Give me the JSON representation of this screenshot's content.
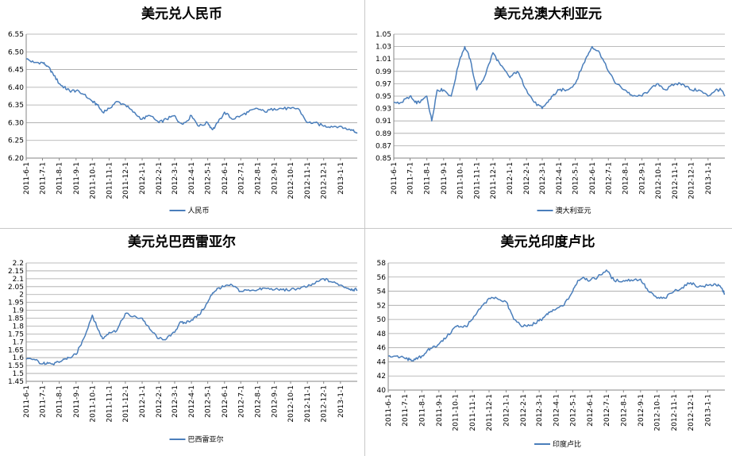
{
  "chart_data": [
    {
      "type": "line",
      "title": "美元兑人民币",
      "x_tick_labels": [
        "2011-6-1",
        "2011-7-1",
        "2011-8-1",
        "2011-9-1",
        "2011-10-1",
        "2011-11-1",
        "2011-12-1",
        "2012-1-1",
        "2012-2-1",
        "2012-3-1",
        "2012-4-1",
        "2012-5-1",
        "2012-6-1",
        "2012-7-1",
        "2012-8-1",
        "2012-9-1",
        "2012-10-1",
        "2012-11-1",
        "2012-12-1",
        "2013-1-1"
      ],
      "ylim": [
        6.2,
        6.55
      ],
      "y_ticks": [
        6.2,
        6.25,
        6.3,
        6.35,
        6.4,
        6.45,
        6.5,
        6.55
      ],
      "y_decimals": 2,
      "grid": true,
      "legend_position": "bottom",
      "series": [
        {
          "name": "人民币",
          "color": "#4a7ebb",
          "x": [
            "2011-6-1",
            "2011-6-15",
            "2011-7-1",
            "2011-7-10",
            "2011-7-20",
            "2011-8-1",
            "2011-8-10",
            "2011-8-20",
            "2011-9-1",
            "2011-9-15",
            "2011-10-1",
            "2011-10-10",
            "2011-10-20",
            "2011-11-1",
            "2011-11-15",
            "2011-12-1",
            "2011-12-15",
            "2012-1-1",
            "2012-1-15",
            "2012-2-1",
            "2012-2-15",
            "2012-3-1",
            "2012-3-10",
            "2012-3-20",
            "2012-4-1",
            "2012-4-15",
            "2012-5-1",
            "2012-5-10",
            "2012-5-20",
            "2012-6-1",
            "2012-6-15",
            "2012-7-1",
            "2012-7-15",
            "2012-8-1",
            "2012-8-15",
            "2012-9-1",
            "2012-9-15",
            "2012-10-1",
            "2012-10-15",
            "2012-11-1",
            "2012-11-15",
            "2012-12-1",
            "2012-12-15",
            "2013-1-1",
            "2013-1-15",
            "2013-1-25",
            "2013-2-1"
          ],
          "y": [
            6.48,
            6.47,
            6.47,
            6.46,
            6.44,
            6.41,
            6.4,
            6.39,
            6.39,
            6.38,
            6.36,
            6.35,
            6.33,
            6.34,
            6.36,
            6.35,
            6.33,
            6.31,
            6.32,
            6.3,
            6.31,
            6.32,
            6.3,
            6.3,
            6.32,
            6.29,
            6.3,
            6.28,
            6.3,
            6.33,
            6.31,
            6.32,
            6.33,
            6.34,
            6.33,
            6.34,
            6.34,
            6.34,
            6.34,
            6.3,
            6.3,
            6.29,
            6.29,
            6.29,
            6.28,
            6.28,
            6.27
          ]
        }
      ]
    },
    {
      "type": "line",
      "title": "美元兑澳大利亚元",
      "x_tick_labels": [
        "2011-6-1",
        "2011-7-1",
        "2011-8-1",
        "2011-9-1",
        "2011-10-1",
        "2011-11-1",
        "2011-12-1",
        "2012-1-1",
        "2012-2-1",
        "2012-3-1",
        "2012-4-1",
        "2012-5-1",
        "2012-6-1",
        "2012-7-1",
        "2012-8-1",
        "2012-9-1",
        "2012-10-1",
        "2012-11-1",
        "2012-12-1",
        "2013-1-1"
      ],
      "ylim": [
        0.85,
        1.05
      ],
      "y_ticks": [
        0.85,
        0.87,
        0.89,
        0.91,
        0.93,
        0.95,
        0.97,
        0.99,
        1.01,
        1.03,
        1.05
      ],
      "y_decimals": 2,
      "grid": true,
      "legend_position": "bottom",
      "series": [
        {
          "name": "澳大利亚元",
          "color": "#4a7ebb",
          "x": [
            "2011-6-1",
            "2011-6-15",
            "2011-7-1",
            "2011-7-10",
            "2011-7-20",
            "2011-8-1",
            "2011-8-10",
            "2011-8-20",
            "2011-9-1",
            "2011-9-15",
            "2011-10-1",
            "2011-10-10",
            "2011-10-20",
            "2011-11-1",
            "2011-11-15",
            "2011-12-1",
            "2011-12-15",
            "2012-1-1",
            "2012-1-15",
            "2012-2-1",
            "2012-2-15",
            "2012-3-1",
            "2012-3-10",
            "2012-3-20",
            "2012-4-1",
            "2012-4-15",
            "2012-5-1",
            "2012-5-10",
            "2012-5-20",
            "2012-6-1",
            "2012-6-15",
            "2012-7-1",
            "2012-7-15",
            "2012-8-1",
            "2012-8-15",
            "2012-9-1",
            "2012-9-15",
            "2012-10-1",
            "2012-10-15",
            "2012-11-1",
            "2012-11-15",
            "2012-12-1",
            "2012-12-15",
            "2013-1-1",
            "2013-1-15",
            "2013-1-25",
            "2013-2-1"
          ],
          "y": [
            0.94,
            0.94,
            0.95,
            0.94,
            0.94,
            0.95,
            0.91,
            0.96,
            0.96,
            0.95,
            1.01,
            1.03,
            1.01,
            0.96,
            0.98,
            1.02,
            1.0,
            0.98,
            0.99,
            0.96,
            0.94,
            0.93,
            0.94,
            0.95,
            0.96,
            0.96,
            0.97,
            0.99,
            1.01,
            1.03,
            1.02,
            0.99,
            0.97,
            0.96,
            0.95,
            0.95,
            0.96,
            0.97,
            0.96,
            0.97,
            0.97,
            0.96,
            0.96,
            0.95,
            0.96,
            0.96,
            0.95
          ]
        }
      ]
    },
    {
      "type": "line",
      "title": "美元兑巴西雷亚尔",
      "x_tick_labels": [
        "2011-6-1",
        "2011-7-1",
        "2011-8-1",
        "2011-9-1",
        "2011-10-1",
        "2011-11-1",
        "2011-12-1",
        "2012-1-1",
        "2012-2-1",
        "2012-3-1",
        "2012-4-1",
        "2012-5-1",
        "2012-6-1",
        "2012-7-1",
        "2012-8-1",
        "2012-9-1",
        "2012-10-1",
        "2012-11-1",
        "2012-12-1",
        "2013-1-1"
      ],
      "ylim": [
        1.45,
        2.2
      ],
      "y_ticks": [
        1.45,
        1.5,
        1.55,
        1.6,
        1.65,
        1.7,
        1.75,
        1.8,
        1.85,
        1.9,
        1.95,
        2.0,
        2.05,
        2.1,
        2.15,
        2.2
      ],
      "y_decimals": -1,
      "grid": true,
      "legend_position": "bottom",
      "series": [
        {
          "name": "巴西雷亚尔",
          "color": "#4a7ebb",
          "x": [
            "2011-6-1",
            "2011-6-15",
            "2011-7-1",
            "2011-7-10",
            "2011-7-20",
            "2011-8-1",
            "2011-8-10",
            "2011-8-20",
            "2011-9-1",
            "2011-9-15",
            "2011-10-1",
            "2011-10-10",
            "2011-10-20",
            "2011-11-1",
            "2011-11-15",
            "2011-12-1",
            "2011-12-15",
            "2012-1-1",
            "2012-1-15",
            "2012-2-1",
            "2012-2-15",
            "2012-3-1",
            "2012-3-10",
            "2012-3-20",
            "2012-4-1",
            "2012-4-15",
            "2012-5-1",
            "2012-5-10",
            "2012-5-20",
            "2012-6-1",
            "2012-6-15",
            "2012-7-1",
            "2012-7-15",
            "2012-8-1",
            "2012-8-15",
            "2012-9-1",
            "2012-9-15",
            "2012-10-1",
            "2012-10-15",
            "2012-11-1",
            "2012-11-15",
            "2012-12-1",
            "2012-12-15",
            "2013-1-1",
            "2013-1-15",
            "2013-1-25",
            "2013-2-1"
          ],
          "y": [
            1.59,
            1.59,
            1.56,
            1.57,
            1.56,
            1.57,
            1.59,
            1.6,
            1.62,
            1.72,
            1.87,
            1.79,
            1.72,
            1.76,
            1.77,
            1.88,
            1.86,
            1.85,
            1.78,
            1.72,
            1.72,
            1.76,
            1.82,
            1.82,
            1.84,
            1.87,
            1.95,
            2.01,
            2.04,
            2.05,
            2.06,
            2.02,
            2.03,
            2.03,
            2.04,
            2.03,
            2.03,
            2.03,
            2.04,
            2.05,
            2.07,
            2.1,
            2.08,
            2.06,
            2.04,
            2.03,
            2.03
          ]
        }
      ]
    },
    {
      "type": "line",
      "title": "美元兑印度卢比",
      "x_tick_labels": [
        "2011-6-1",
        "2011-7-1",
        "2011-8-1",
        "2011-9-1",
        "2011-10-1",
        "2011-11-1",
        "2011-12-1",
        "2012-1-1",
        "2012-2-1",
        "2012-3-1",
        "2012-4-1",
        "2012-5-1",
        "2012-6-1",
        "2012-7-1",
        "2012-8-1",
        "2012-9-1",
        "2012-10-1",
        "2012-11-1",
        "2012-12-1",
        "2013-1-1"
      ],
      "ylim": [
        40,
        58
      ],
      "y_ticks": [
        40,
        42,
        44,
        46,
        48,
        50,
        52,
        54,
        56,
        58
      ],
      "y_decimals": 0,
      "grid": true,
      "legend_position": "bottom",
      "series": [
        {
          "name": "印度卢比",
          "color": "#4a7ebb",
          "x": [
            "2011-6-1",
            "2011-6-15",
            "2011-7-1",
            "2011-7-10",
            "2011-7-20",
            "2011-8-1",
            "2011-8-10",
            "2011-8-20",
            "2011-9-1",
            "2011-9-15",
            "2011-10-1",
            "2011-10-10",
            "2011-10-20",
            "2011-11-1",
            "2011-11-15",
            "2011-12-1",
            "2011-12-15",
            "2012-1-1",
            "2012-1-15",
            "2012-2-1",
            "2012-2-15",
            "2012-3-1",
            "2012-3-10",
            "2012-3-20",
            "2012-4-1",
            "2012-4-15",
            "2012-5-1",
            "2012-5-10",
            "2012-5-20",
            "2012-6-1",
            "2012-6-15",
            "2012-7-1",
            "2012-7-15",
            "2012-8-1",
            "2012-8-15",
            "2012-9-1",
            "2012-9-15",
            "2012-10-1",
            "2012-10-15",
            "2012-11-1",
            "2012-11-15",
            "2012-12-1",
            "2012-12-15",
            "2013-1-1",
            "2013-1-15",
            "2013-1-25",
            "2013-2-1"
          ],
          "y": [
            44.8,
            44.8,
            44.5,
            44.3,
            44.3,
            44.8,
            45.5,
            46.0,
            46.5,
            47.5,
            49.0,
            49.0,
            49.0,
            50.0,
            51.5,
            53.0,
            53.0,
            52.5,
            50.0,
            49.0,
            49.2,
            49.8,
            50.3,
            51.0,
            51.5,
            52.0,
            54.0,
            55.5,
            56.0,
            55.5,
            56.0,
            57.0,
            55.5,
            55.5,
            55.6,
            55.7,
            54.0,
            53.0,
            53.0,
            54.0,
            54.5,
            55.2,
            54.6,
            54.8,
            55.0,
            54.5,
            53.6
          ]
        }
      ]
    }
  ]
}
